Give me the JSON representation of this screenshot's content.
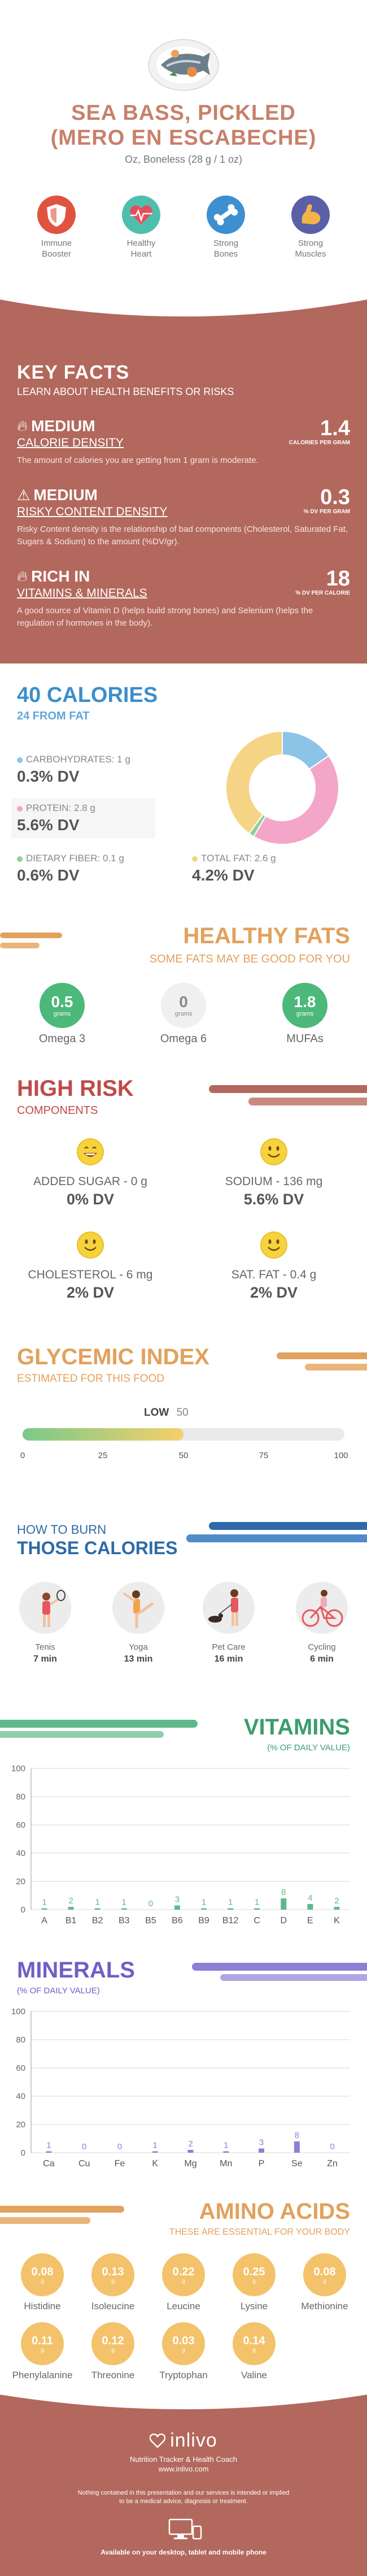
{
  "header": {
    "title_line1": "SEA BASS, PICKLED",
    "title_line2": "(MERO EN ESCABECHE)",
    "serving": "Oz, Boneless (28 g / 1 oz)",
    "benefits": [
      {
        "label_line1": "Immune",
        "label_line2": "Booster",
        "icon": "shield-icon",
        "color": "#e0533f"
      },
      {
        "label_line1": "Healthy",
        "label_line2": "Heart",
        "icon": "heart-icon",
        "color": "#4fbfad"
      },
      {
        "label_line1": "Strong",
        "label_line2": "Bones",
        "icon": "bone-icon",
        "color": "#3e8fd0"
      },
      {
        "label_line1": "Strong",
        "label_line2": "Muscles",
        "icon": "muscle-icon",
        "color": "#5b5fa6"
      }
    ]
  },
  "key_facts": {
    "title": "KEY FACTS",
    "subtitle": "LEARN ABOUT HEALTH BENEFITS OR RISKS",
    "facts": [
      {
        "level": "MEDIUM",
        "name": "CALORIE DENSITY",
        "value": "1.4",
        "unit": "CALORIES PER GRAM",
        "icon": "flame-icon",
        "desc": "The amount of calories you are getting from 1 gram is moderate."
      },
      {
        "level": "MEDIUM",
        "name": "RISKY CONTENT DENSITY",
        "value": "0.3",
        "unit": "% DV PER GRAM",
        "icon": "warning-icon",
        "desc": "Risky Content density is the relationship of bad components (Cholesterol, Saturated Fat, Sugars & Sodium) to the amount (%DV/gr)."
      },
      {
        "level": "RICH IN",
        "name": "VITAMINS & MINERALS",
        "value": "18",
        "unit": "% DV PER CALORIE",
        "icon": "flame-icon",
        "desc": "A good source of Vitamin D (helps build strong bones) and Selenium (helps the regulation of hormones in the body)."
      }
    ]
  },
  "calories": {
    "title": "40 CALORIES",
    "subtitle": "24 FROM FAT",
    "carbs_label": "CARBOHYDRATES: 1 g",
    "carbs_dv": "0.3% DV",
    "carbs_color": "#8cc4e8",
    "protein_label": "PROTEIN: 2.8 g",
    "protein_dv": "5.6% DV",
    "protein_color": "#f4a6c8",
    "fiber_label": "DIETARY FIBER: 0.1 g",
    "fiber_dv": "0.6% DV",
    "fiber_color": "#8fcf9a",
    "fat_label": "TOTAL FAT: 2.6 g",
    "fat_dv": "4.2% DV",
    "fat_color": "#f6d486"
  },
  "chart_data": [
    {
      "type": "pie",
      "title": "",
      "categories": [
        "Carbohydrates",
        "Protein",
        "Dietary Fiber",
        "Total Fat"
      ],
      "values": [
        1,
        2.8,
        0.1,
        2.6
      ],
      "colors": [
        "#8cc4e8",
        "#f4a6c8",
        "#8fcf9a",
        "#f6d486"
      ]
    },
    {
      "type": "bar",
      "title": "VITAMINS",
      "ylabel": "% OF DAILY VALUE",
      "categories": [
        "A",
        "B1",
        "B2",
        "B3",
        "B5",
        "B6",
        "B9",
        "B12",
        "C",
        "D",
        "E",
        "K"
      ],
      "values": [
        1,
        2,
        1,
        1,
        0,
        3,
        1,
        1,
        1,
        8,
        4,
        2
      ],
      "ylim": [
        0,
        100
      ],
      "yticks": [
        0,
        20,
        40,
        60,
        80,
        100
      ],
      "color": "#5fb88c"
    },
    {
      "type": "bar",
      "title": "MINERALS",
      "ylabel": "% OF DAILY VALUE",
      "categories": [
        "Ca",
        "Cu",
        "Fe",
        "K",
        "Mg",
        "Mn",
        "P",
        "Se",
        "Zn"
      ],
      "values": [
        1,
        0,
        0,
        1,
        2,
        1,
        3,
        8,
        0
      ],
      "ylim": [
        0,
        100
      ],
      "yticks": [
        0,
        20,
        40,
        60,
        80,
        100
      ],
      "color": "#8d7fd6"
    }
  ],
  "healthy_fats": {
    "title": "HEALTHY FATS",
    "subtitle": "SOME FATS MAY BE GOOD FOR YOU",
    "items": [
      {
        "value": "0.5",
        "unit": "grams",
        "name": "Omega 3",
        "color": "#4cb87a"
      },
      {
        "value": "0",
        "unit": "grams",
        "name": "Omega 6",
        "color": "#eeeeee"
      },
      {
        "value": "1.8",
        "unit": "grams",
        "name": "MUFAs",
        "color": "#4cb87a"
      }
    ]
  },
  "high_risk": {
    "title": "HIGH RISK",
    "subtitle": "COMPONENTS",
    "items": [
      {
        "label": "ADDED SUGAR - 0 g",
        "dv": "0% DV",
        "face": "laughing-face-icon"
      },
      {
        "label": "SODIUM - 136 mg",
        "dv": "5.6% DV",
        "face": "smiling-face-icon"
      },
      {
        "label": "CHOLESTEROL - 6 mg",
        "dv": "2% DV",
        "face": "smiling-face-icon"
      },
      {
        "label": "SAT. FAT - 0.4 g",
        "dv": "2% DV",
        "face": "smiling-face-icon"
      }
    ]
  },
  "glycemic": {
    "title": "GLYCEMIC INDEX",
    "subtitle": "ESTIMATED FOR THIS FOOD",
    "level": "LOW",
    "value": "50",
    "value_num": 50,
    "ticks": [
      "0",
      "25",
      "50",
      "75",
      "100"
    ]
  },
  "burn": {
    "title_line1": "HOW TO BURN",
    "title_line2": "THOSE CALORIES",
    "activities": [
      {
        "name": "Tenis",
        "time": "7 min",
        "icon": "tennis-player-icon"
      },
      {
        "name": "Yoga",
        "time": "13 min",
        "icon": "yoga-icon"
      },
      {
        "name": "Pet Care",
        "time": "16 min",
        "icon": "dog-walking-icon"
      },
      {
        "name": "Cycling",
        "time": "6 min",
        "icon": "cyclist-icon"
      }
    ]
  },
  "vitamins": {
    "title": "VITAMINS",
    "subtitle": "(% OF DAILY VALUE)"
  },
  "minerals": {
    "title": "MINERALS",
    "subtitle": "(% OF DAILY VALUE)"
  },
  "amino": {
    "title": "AMINO ACIDS",
    "subtitle": "THESE ARE ESSENTIAL FOR YOUR BODY",
    "unit": "g",
    "items": [
      {
        "value": "0.08",
        "name": "Histidine"
      },
      {
        "value": "0.13",
        "name": "Isoleucine"
      },
      {
        "value": "0.22",
        "name": "Leucine"
      },
      {
        "value": "0.25",
        "name": "Lysine"
      },
      {
        "value": "0.08",
        "name": "Methionine"
      },
      {
        "value": "0.11",
        "name": "Phenylalanine"
      },
      {
        "value": "0.12",
        "name": "Threonine"
      },
      {
        "value": "0.03",
        "name": "Tryptophan"
      },
      {
        "value": "0.14",
        "name": "Valine"
      }
    ]
  },
  "footer": {
    "brand": "inlivo",
    "tagline": "Nutrition Tracker & Health Coach",
    "url": "www.inlivo.com",
    "disclaimer": "Nothing contained in this presentation and our services is intended or implied to be a medical advice, diagnosis or treatment.",
    "available": "Available on your desktop, tablet and mobile phone"
  }
}
